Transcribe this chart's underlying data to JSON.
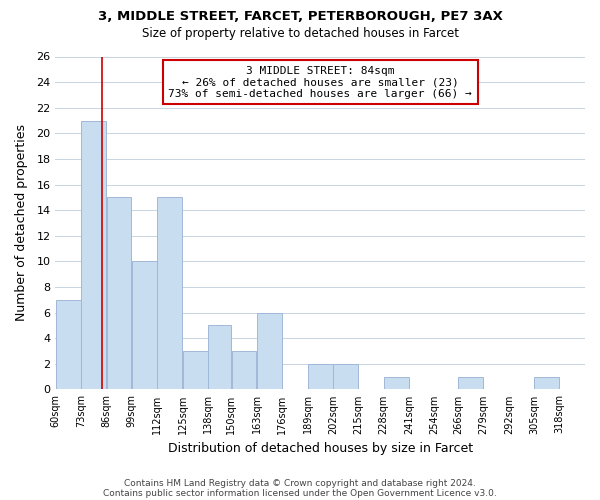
{
  "title1": "3, MIDDLE STREET, FARCET, PETERBOROUGH, PE7 3AX",
  "title2": "Size of property relative to detached houses in Farcet",
  "xlabel": "Distribution of detached houses by size in Farcet",
  "ylabel": "Number of detached properties",
  "bin_labels": [
    "60sqm",
    "73sqm",
    "86sqm",
    "99sqm",
    "112sqm",
    "125sqm",
    "138sqm",
    "150sqm",
    "163sqm",
    "176sqm",
    "189sqm",
    "202sqm",
    "215sqm",
    "228sqm",
    "241sqm",
    "254sqm",
    "266sqm",
    "279sqm",
    "292sqm",
    "305sqm",
    "318sqm"
  ],
  "bin_edges": [
    60,
    73,
    86,
    99,
    112,
    125,
    138,
    150,
    163,
    176,
    189,
    202,
    215,
    228,
    241,
    254,
    266,
    279,
    292,
    305,
    318,
    331
  ],
  "bar_heights": [
    7,
    21,
    15,
    10,
    15,
    3,
    5,
    3,
    6,
    0,
    2,
    2,
    0,
    1,
    0,
    0,
    1,
    0,
    0,
    1,
    0
  ],
  "bar_color": "#c9ddf0",
  "bar_edgecolor": "#a0b8d8",
  "vline_color": "#cc0000",
  "vline_x": 84,
  "ylim": [
    0,
    26
  ],
  "yticks": [
    0,
    2,
    4,
    6,
    8,
    10,
    12,
    14,
    16,
    18,
    20,
    22,
    24,
    26
  ],
  "annotation_line1": "3 MIDDLE STREET: 84sqm",
  "annotation_line2": "← 26% of detached houses are smaller (23)",
  "annotation_line3": "73% of semi-detached houses are larger (66) →",
  "annotation_box_edgecolor": "#cc0000",
  "annotation_box_facecolor": "#ffffff",
  "footer1": "Contains HM Land Registry data © Crown copyright and database right 2024.",
  "footer2": "Contains public sector information licensed under the Open Government Licence v3.0.",
  "background_color": "#ffffff",
  "grid_color": "#c8d4e0"
}
